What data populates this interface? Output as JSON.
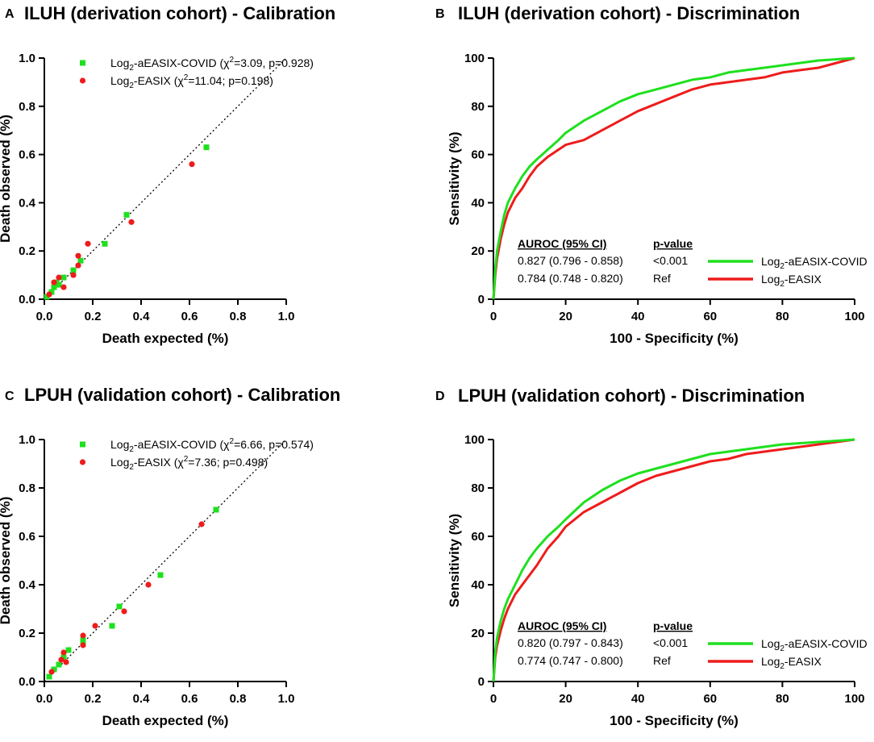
{
  "figure": {
    "panels": [
      {
        "id": "A",
        "title": "ILUH (derivation cohort) - Calibration"
      },
      {
        "id": "B",
        "title": "ILUH (derivation cohort) - Discrimination"
      },
      {
        "id": "C",
        "title": "LPUH (validation cohort) - Calibration"
      },
      {
        "id": "D",
        "title": "LPUH (validation cohort) - Discrimination"
      }
    ]
  },
  "colors": {
    "green": "#1ee01e",
    "red": "#ee1c1c"
  },
  "chart_data": [
    {
      "panel": "A",
      "type": "scatter",
      "title": "ILUH (derivation cohort) - Calibration",
      "xlabel": "Death expected (%)",
      "ylabel": "Death observed (%)",
      "xlim": [
        0,
        1.0
      ],
      "ylim": [
        0,
        1.0
      ],
      "xticks": [
        "0.0",
        "0.2",
        "0.4",
        "0.6",
        "0.8",
        "1.0"
      ],
      "yticks": [
        "0.0",
        "0.2",
        "0.4",
        "0.6",
        "0.8",
        "1.0"
      ],
      "reference_line": "y = x (dotted)",
      "series": [
        {
          "name": "Log2-aEASIX-COVID",
          "legend": {
            "prefix": "Log",
            "sub": "2",
            "rest": "-aEASIX-COVID (χ",
            "sup": "2",
            "stat": "=3.09, p=0.928)"
          },
          "marker": "square",
          "color": "green",
          "x": [
            0.01,
            0.03,
            0.04,
            0.05,
            0.06,
            0.08,
            0.12,
            0.15,
            0.25,
            0.34,
            0.67
          ],
          "y": [
            0.01,
            0.03,
            0.05,
            0.07,
            0.06,
            0.09,
            0.12,
            0.16,
            0.23,
            0.35,
            0.63
          ]
        },
        {
          "name": "Log2-EASIX",
          "legend": {
            "prefix": "Log",
            "sub": "2",
            "rest": "-EASIX (χ",
            "sup": "2",
            "stat": "=11.04; p=0.198)"
          },
          "marker": "circle",
          "color": "red",
          "x": [
            0.02,
            0.04,
            0.06,
            0.08,
            0.12,
            0.14,
            0.14,
            0.18,
            0.36,
            0.61
          ],
          "y": [
            0.02,
            0.07,
            0.09,
            0.05,
            0.1,
            0.14,
            0.18,
            0.23,
            0.32,
            0.56
          ]
        }
      ]
    },
    {
      "panel": "B",
      "type": "line",
      "title": "ILUH (derivation cohort) - Discrimination",
      "xlabel": "100 - Specificity (%)",
      "ylabel": "Sensitivity (%)",
      "xlim": [
        0,
        100
      ],
      "ylim": [
        0,
        100
      ],
      "xticks": [
        "0",
        "20",
        "40",
        "60",
        "80",
        "100"
      ],
      "yticks": [
        "0",
        "20",
        "40",
        "60",
        "80",
        "100"
      ],
      "table": {
        "header_auroc": "AUROC (95% CI)",
        "header_p": "p-value",
        "rows": [
          {
            "auroc": "0.827 (0.796 - 0.858)",
            "p": "<0.001"
          },
          {
            "auroc": "0.784 (0.748 - 0.820)",
            "p": "Ref"
          }
        ]
      },
      "series": [
        {
          "name": "Log2-aEASIX-COVID",
          "color": "green",
          "legend": {
            "prefix": "Log",
            "sub": "2",
            "rest": "-aEASIX-COVID"
          },
          "x": [
            0,
            0.5,
            1,
            2,
            3,
            4,
            5,
            6,
            8,
            10,
            12,
            15,
            18,
            20,
            25,
            30,
            35,
            40,
            45,
            50,
            55,
            60,
            65,
            70,
            75,
            80,
            85,
            90,
            95,
            100
          ],
          "y": [
            0,
            12,
            20,
            28,
            35,
            40,
            43,
            46,
            51,
            55,
            58,
            62,
            66,
            69,
            74,
            78,
            82,
            85,
            87,
            89,
            91,
            92,
            94,
            95,
            96,
            97,
            98,
            99,
            99.5,
            100
          ]
        },
        {
          "name": "Log2-EASIX",
          "color": "red",
          "legend": {
            "prefix": "Log",
            "sub": "2",
            "rest": "-EASIX"
          },
          "x": [
            0,
            0.5,
            1,
            2,
            3,
            4,
            5,
            6,
            8,
            10,
            12,
            15,
            18,
            20,
            25,
            30,
            35,
            40,
            45,
            50,
            55,
            60,
            65,
            70,
            75,
            80,
            85,
            90,
            95,
            100
          ],
          "y": [
            0,
            10,
            17,
            25,
            31,
            36,
            39,
            42,
            46,
            51,
            55,
            59,
            62,
            64,
            66,
            70,
            74,
            78,
            81,
            84,
            87,
            89,
            90,
            91,
            92,
            94,
            95,
            96,
            98,
            100
          ]
        }
      ]
    },
    {
      "panel": "C",
      "type": "scatter",
      "title": "LPUH (validation cohort) - Calibration",
      "xlabel": "Death expected (%)",
      "ylabel": "Death observed (%)",
      "xlim": [
        0,
        1.0
      ],
      "ylim": [
        0,
        1.0
      ],
      "xticks": [
        "0.0",
        "0.2",
        "0.4",
        "0.6",
        "0.8",
        "1.0"
      ],
      "yticks": [
        "0.0",
        "0.2",
        "0.4",
        "0.6",
        "0.8",
        "1.0"
      ],
      "reference_line": "y = x (dotted)",
      "series": [
        {
          "name": "Log2-aEASIX-COVID",
          "legend": {
            "prefix": "Log",
            "sub": "2",
            "rest": "-aEASIX-COVID (χ",
            "sup": "2",
            "stat": "=6.66, p=0.574)"
          },
          "marker": "square",
          "color": "green",
          "x": [
            0.02,
            0.04,
            0.06,
            0.08,
            0.1,
            0.16,
            0.16,
            0.28,
            0.31,
            0.48,
            0.71
          ],
          "y": [
            0.02,
            0.05,
            0.07,
            0.1,
            0.13,
            0.16,
            0.17,
            0.23,
            0.31,
            0.44,
            0.71
          ]
        },
        {
          "name": "Log2-EASIX",
          "legend": {
            "prefix": "Log",
            "sub": "2",
            "rest": "-EASIX (χ",
            "sup": "2",
            "stat": "=7.36; p=0.498)"
          },
          "marker": "circle",
          "color": "red",
          "x": [
            0.03,
            0.07,
            0.08,
            0.09,
            0.16,
            0.16,
            0.21,
            0.33,
            0.43,
            0.65
          ],
          "y": [
            0.04,
            0.09,
            0.12,
            0.08,
            0.15,
            0.19,
            0.23,
            0.29,
            0.4,
            0.65
          ]
        }
      ]
    },
    {
      "panel": "D",
      "type": "line",
      "title": "LPUH (validation cohort) - Discrimination",
      "xlabel": "100 - Specificity (%)",
      "ylabel": "Sensitivity (%)",
      "xlim": [
        0,
        100
      ],
      "ylim": [
        0,
        100
      ],
      "xticks": [
        "0",
        "20",
        "40",
        "60",
        "80",
        "100"
      ],
      "yticks": [
        "0",
        "20",
        "40",
        "60",
        "80",
        "100"
      ],
      "table": {
        "header_auroc": "AUROC (95% CI)",
        "header_p": "p-value",
        "rows": [
          {
            "auroc": "0.820 (0.797 - 0.843)",
            "p": "<0.001"
          },
          {
            "auroc": "0.774 (0.747 - 0.800)",
            "p": "Ref"
          }
        ]
      },
      "series": [
        {
          "name": "Log2-aEASIX-COVID",
          "color": "green",
          "legend": {
            "prefix": "Log",
            "sub": "2",
            "rest": "-aEASIX-COVID"
          },
          "x": [
            0,
            0.5,
            1,
            2,
            3,
            4,
            5,
            6,
            8,
            10,
            12,
            15,
            18,
            20,
            25,
            30,
            35,
            40,
            45,
            50,
            55,
            60,
            65,
            70,
            75,
            80,
            85,
            90,
            95,
            100
          ],
          "y": [
            0,
            12,
            18,
            25,
            30,
            34,
            37,
            40,
            46,
            51,
            55,
            60,
            64,
            67,
            74,
            79,
            83,
            86,
            88,
            90,
            92,
            94,
            95,
            96,
            97,
            98,
            98.5,
            99,
            99.5,
            100
          ]
        },
        {
          "name": "Log2-EASIX",
          "color": "red",
          "legend": {
            "prefix": "Log",
            "sub": "2",
            "rest": "-EASIX"
          },
          "x": [
            0,
            0.5,
            1,
            2,
            3,
            4,
            5,
            6,
            8,
            10,
            12,
            15,
            18,
            20,
            25,
            30,
            35,
            40,
            45,
            50,
            55,
            60,
            65,
            70,
            75,
            80,
            85,
            90,
            95,
            100
          ],
          "y": [
            0,
            10,
            15,
            21,
            26,
            30,
            33,
            36,
            40,
            44,
            48,
            55,
            60,
            64,
            70,
            74,
            78,
            82,
            85,
            87,
            89,
            91,
            92,
            94,
            95,
            96,
            97,
            98,
            99,
            100
          ]
        }
      ]
    }
  ]
}
